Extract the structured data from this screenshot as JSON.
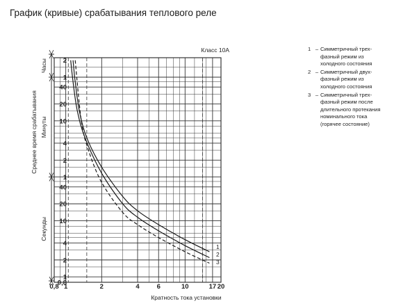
{
  "page": {
    "title": "График (кривые) срабатывания теплового реле"
  },
  "legend": [
    {
      "num": "1",
      "dash": "–",
      "lines": [
        "Симметричный трех-",
        "фазный режим из",
        "холодного состояния"
      ]
    },
    {
      "num": "2",
      "dash": "–",
      "lines": [
        "Симметричный двух-",
        "фазный режим из",
        "холодного состояния"
      ]
    },
    {
      "num": "3",
      "dash": "–",
      "lines": [
        "Симметричный трех-",
        "фазный режим после",
        "длительного протекания",
        "номинального тока",
        "(горячее состояние)"
      ]
    }
  ],
  "chart_data": {
    "type": "line",
    "annotation": "Класс 10А",
    "xlabel": "Кратность тока установки",
    "ylabel": "Среднее время срабатывания",
    "x_scale": "log",
    "y_scale": "log",
    "xlim": [
      0.8,
      20
    ],
    "x_ticks": [
      {
        "value": 0.8,
        "label": "0,8"
      },
      {
        "value": 1,
        "label": "1"
      },
      {
        "value": 2,
        "label": "2"
      },
      {
        "value": 4,
        "label": "4"
      },
      {
        "value": 6,
        "label": "6"
      },
      {
        "value": 10,
        "label": "10"
      },
      {
        "value": 17,
        "label": "17"
      },
      {
        "value": 20,
        "label": "20"
      }
    ],
    "y_bands": [
      {
        "name": "Часы",
        "from": "1",
        "to": "top"
      },
      {
        "name": "Минуты",
        "from": "1",
        "to": "1"
      },
      {
        "name": "Секунды",
        "from": "0,8",
        "to": "1"
      }
    ],
    "y_ticks": [
      {
        "label": "2",
        "unit": "h"
      },
      {
        "label": "1",
        "unit": "h"
      },
      {
        "label": "40",
        "unit": "min"
      },
      {
        "label": "20",
        "unit": "min"
      },
      {
        "label": "10",
        "unit": "min"
      },
      {
        "label": "4",
        "unit": "min"
      },
      {
        "label": "2",
        "unit": "min"
      },
      {
        "label": "1",
        "unit": "min"
      },
      {
        "label": "40",
        "unit": "s"
      },
      {
        "label": "20",
        "unit": "s"
      },
      {
        "label": "10",
        "unit": "s"
      },
      {
        "label": "4",
        "unit": "s"
      },
      {
        "label": "2",
        "unit": "s"
      },
      {
        "label": "1",
        "unit": "s"
      },
      {
        "label": "0,8",
        "unit": "s"
      }
    ],
    "reference_lines_x": [
      1.05,
      1.5,
      14
    ],
    "series": [
      {
        "name": "1",
        "style": "solid",
        "x": [
          1.15,
          1.2,
          1.3,
          1.5,
          2.0,
          3.0,
          4.0,
          6.0,
          10.0,
          16.0
        ],
        "y_seconds": [
          7200,
          3000,
          900,
          300,
          90,
          27,
          15,
          8.5,
          4.6,
          2.8
        ]
      },
      {
        "name": "2",
        "style": "solid",
        "x": [
          1.1,
          1.15,
          1.25,
          1.45,
          2.0,
          3.0,
          4.0,
          6.0,
          10.0,
          16.0
        ],
        "y_seconds": [
          7200,
          3000,
          900,
          300,
          70,
          20,
          11.5,
          6.6,
          3.6,
          2.2
        ]
      },
      {
        "name": "3",
        "style": "dashed",
        "x": [
          1.2,
          1.35,
          1.55,
          2.0,
          3.0,
          4.0,
          6.0,
          10.0,
          16.0
        ],
        "y_seconds": [
          7200,
          600,
          180,
          48,
          14,
          8.5,
          5.0,
          2.8,
          1.75
        ]
      }
    ]
  }
}
